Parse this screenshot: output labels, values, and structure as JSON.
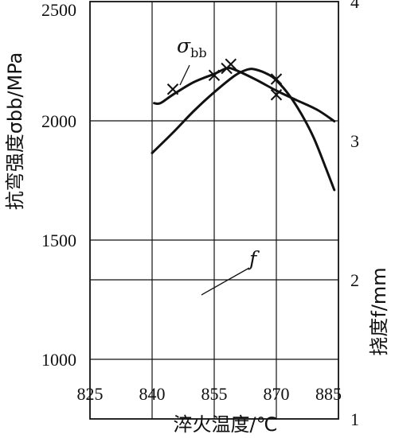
{
  "chart_data": {
    "type": "line",
    "xlabel": "淬火温度/℃",
    "ylabel_left": "抗弯强度σbb/MPa",
    "ylabel_right": "挠度f/mm",
    "grid": true,
    "x_ticks": [
      "825",
      "840",
      "855",
      "870",
      "885"
    ],
    "y_left_ticks": [
      "1000",
      "1500",
      "2000",
      "2500"
    ],
    "y_right_ticks": [
      "1",
      "2",
      "3",
      "4"
    ],
    "xlim": [
      825,
      885
    ],
    "ylim_left": [
      750,
      2500
    ],
    "ylim_right": [
      1,
      4
    ],
    "series": [
      {
        "name": "σbb",
        "axis": "left",
        "curve": [
          [
            840,
            1865
          ],
          [
            845,
            1950
          ],
          [
            850,
            2040
          ],
          [
            855,
            2120
          ],
          [
            860,
            2190
          ],
          [
            863,
            2215
          ],
          [
            865,
            2215
          ],
          [
            868,
            2195
          ],
          [
            870,
            2170
          ],
          [
            873,
            2110
          ],
          [
            876,
            2030
          ],
          [
            879,
            1930
          ],
          [
            882,
            1800
          ],
          [
            884,
            1710
          ]
        ],
        "points": [
          [
            858,
            2220
          ],
          [
            870,
            2175
          ]
        ]
      },
      {
        "name": "f",
        "axis": "right",
        "curve": [
          [
            840.5,
            3.27
          ],
          [
            842,
            3.27
          ],
          [
            845,
            3.33
          ],
          [
            850,
            3.42
          ],
          [
            855,
            3.48
          ],
          [
            858,
            3.52
          ],
          [
            860,
            3.51
          ],
          [
            865,
            3.44
          ],
          [
            870,
            3.36
          ],
          [
            875,
            3.29
          ],
          [
            880,
            3.22
          ],
          [
            884,
            3.14
          ]
        ],
        "points": [
          [
            845,
            3.37
          ],
          [
            855,
            3.47
          ],
          [
            859,
            3.55
          ],
          [
            870,
            3.33
          ]
        ]
      }
    ]
  }
}
